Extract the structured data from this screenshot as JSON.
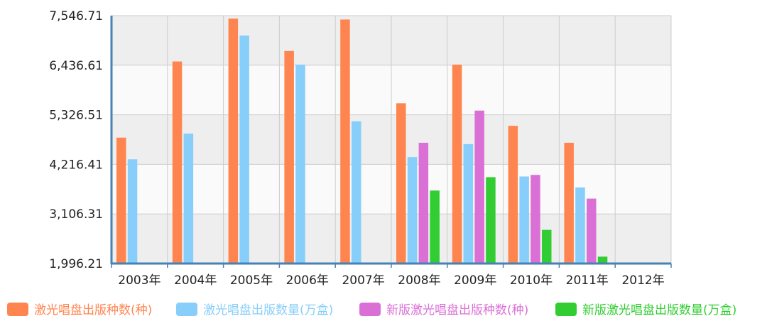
{
  "chart_data": {
    "type": "bar",
    "categories": [
      "2003年",
      "2004年",
      "2005年",
      "2006年",
      "2007年",
      "2008年",
      "2009年",
      "2010年",
      "2011年",
      "2012年"
    ],
    "y_ticks": [
      "7,546.71",
      "6,436.61",
      "5,326.51",
      "4,216.41",
      "3,106.31",
      "1,996.21"
    ],
    "ylim": [
      1996.21,
      7546.71
    ],
    "grid": true,
    "legend_position": "bottom",
    "series": [
      {
        "name": "激光唱盘出版种数(种)",
        "color": "#ff8550",
        "values": [
          4815,
          6520,
          7480,
          6755,
          7460,
          5585,
          6450,
          5080,
          4700,
          null
        ]
      },
      {
        "name": "激光唱盘出版数量(万盒)",
        "color": "#87cefa",
        "values": [
          4330,
          4905,
          7100,
          6450,
          5180,
          4380,
          4670,
          3945,
          3700,
          null
        ]
      },
      {
        "name": "新版激光唱盘出版种数(种)",
        "color": "#da70d6",
        "values": [
          null,
          null,
          null,
          null,
          null,
          4700,
          5420,
          3980,
          3450,
          null
        ]
      },
      {
        "name": "新版激光唱盘出版数量(万盒)",
        "color": "#32cd32",
        "values": [
          null,
          null,
          null,
          null,
          null,
          3630,
          3930,
          2750,
          2150,
          null
        ]
      }
    ]
  }
}
